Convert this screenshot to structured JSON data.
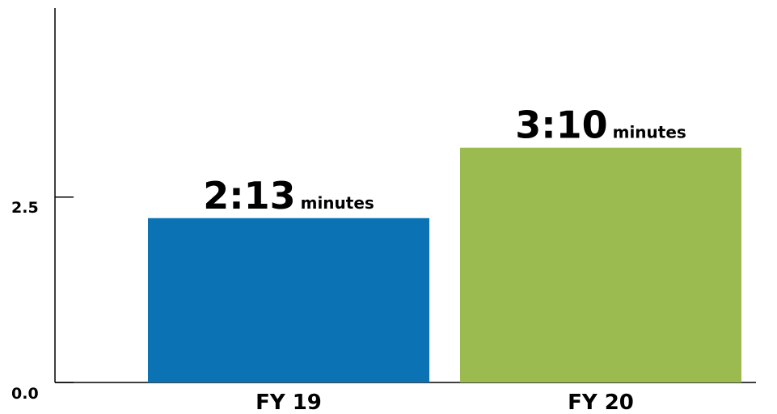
{
  "chart_data": {
    "type": "bar",
    "categories": [
      "FY 19",
      "FY 20"
    ],
    "values": [
      2.2167,
      3.1667
    ],
    "value_labels": [
      {
        "value": "2:13",
        "unit": "minutes"
      },
      {
        "value": "3:10",
        "unit": "minutes"
      }
    ],
    "colors": [
      "#0b73b4",
      "#9bbb50"
    ],
    "y_ticks": [
      {
        "value": 0.0,
        "label": "0.0"
      },
      {
        "value": 2.5,
        "label": "2.5"
      }
    ],
    "ylim": [
      0,
      5.05
    ],
    "title": "",
    "xlabel": "",
    "ylabel": "",
    "grid": false,
    "legend": "none"
  }
}
